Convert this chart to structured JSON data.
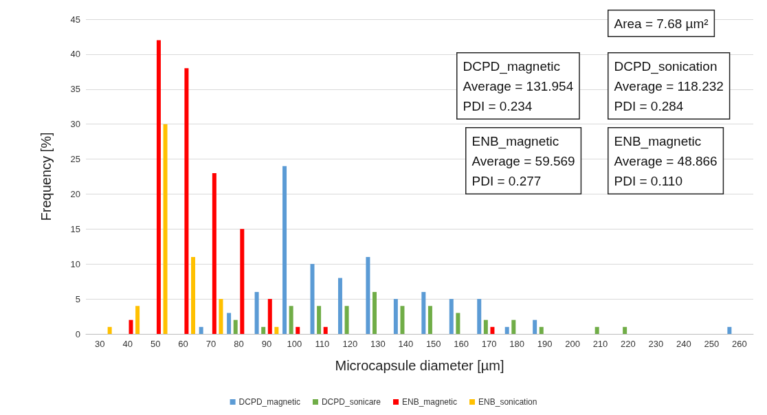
{
  "chart_data": {
    "type": "bar",
    "xlabel": "Microcapsule diameter [µm]",
    "ylabel": "Frequency [%]",
    "categories": [
      "30",
      "40",
      "50",
      "60",
      "70",
      "80",
      "90",
      "100",
      "110",
      "120",
      "130",
      "140",
      "150",
      "160",
      "170",
      "180",
      "190",
      "200",
      "210",
      "220",
      "230",
      "240",
      "250",
      "260"
    ],
    "series": [
      {
        "name": "DCPD_magnetic",
        "color": "#5b9bd5",
        "values": [
          null,
          null,
          null,
          null,
          1,
          3,
          6,
          24,
          10,
          8,
          11,
          5,
          6,
          5,
          5,
          1,
          2,
          null,
          null,
          null,
          null,
          null,
          null,
          1
        ]
      },
      {
        "name": "DCPD_sonicare",
        "color": "#70ad47",
        "values": [
          null,
          null,
          null,
          null,
          null,
          2,
          1,
          4,
          4,
          4,
          6,
          4,
          4,
          3,
          2,
          2,
          1,
          null,
          1,
          1,
          null,
          null,
          null,
          null
        ]
      },
      {
        "name": "ENB_magnetic",
        "color": "#ff0000",
        "values": [
          null,
          2,
          42,
          38,
          23,
          15,
          5,
          1,
          1,
          null,
          null,
          null,
          null,
          null,
          1,
          null,
          null,
          null,
          null,
          null,
          null,
          null,
          null,
          null
        ]
      },
      {
        "name": "ENB_sonication",
        "color": "#ffc000",
        "values": [
          1,
          4,
          30,
          11,
          5,
          null,
          1,
          null,
          null,
          null,
          null,
          null,
          null,
          null,
          null,
          null,
          null,
          null,
          null,
          null,
          null,
          null,
          null,
          null
        ]
      }
    ],
    "ylim": [
      0,
      45
    ],
    "yticks": [
      0,
      5,
      10,
      15,
      20,
      25,
      30,
      35,
      40,
      45
    ],
    "grid": "y",
    "legend": "bottom",
    "annotations": [
      "Area = 7.68 µm²",
      "DCPD_magnetic\nAverage = 131.954\nPDI = 0.234",
      "DCPD_sonication\nAverage = 118.232\nPDI = 0.284",
      "ENB_magnetic\nAverage = 59.569\nPDI = 0.277",
      "ENB_magnetic\nAverage = 48.866\nPDI = 0.110"
    ]
  }
}
